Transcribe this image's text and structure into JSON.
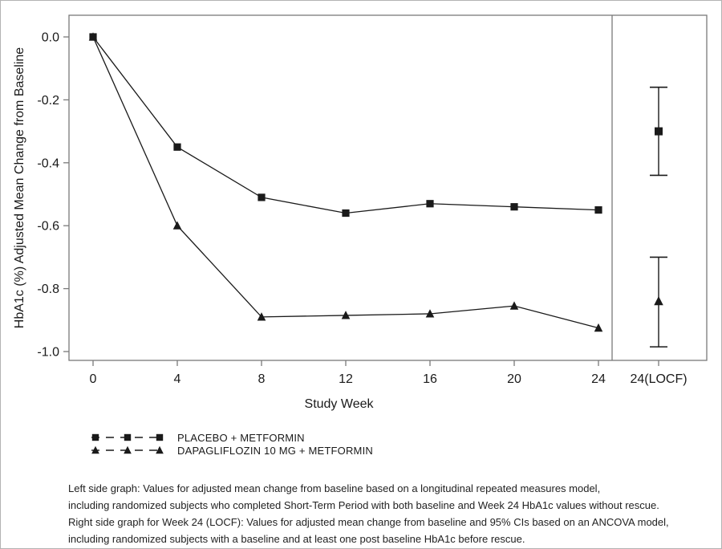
{
  "colors": {
    "ink": "#1a1a1a",
    "axis": "#7a7a7a",
    "frame_border": "#b3b3b3",
    "background": "#ffffff"
  },
  "chart_data": {
    "type": "line",
    "xlabel": "Study Week",
    "ylabel": "HbA1c (%) Adjusted Mean Change from Baseline",
    "x": [
      0,
      4,
      8,
      12,
      16,
      20,
      24
    ],
    "x_tick_labels": [
      "0",
      "4",
      "8",
      "12",
      "16",
      "20",
      "24"
    ],
    "locf_tick_label": "24(LOCF)",
    "ylim": [
      -1.0,
      0.0
    ],
    "yticks": [
      0.0,
      -0.2,
      -0.4,
      -0.6,
      -0.8,
      -1.0
    ],
    "ytick_labels": [
      "0.0",
      "-0.2",
      "-0.4",
      "-0.6",
      "-0.8",
      "-1.0"
    ],
    "grid": false,
    "legend_position": "bottom-left",
    "right_panel": "24 (LOCF) with 95% CI error bars, separated by vertical divider",
    "series": [
      {
        "name": "PLACEBO + METFORMIN",
        "marker": "square",
        "line_style": "dashed-in-legend",
        "values": [
          0.0,
          -0.35,
          -0.51,
          -0.56,
          -0.53,
          -0.54,
          -0.55
        ],
        "locf": {
          "value": -0.3,
          "ci_low": -0.44,
          "ci_high": -0.16
        }
      },
      {
        "name": "DAPAGLIFLOZIN 10 MG + METFORMIN",
        "marker": "triangle",
        "line_style": "dashed-in-legend",
        "values": [
          0.0,
          -0.6,
          -0.89,
          -0.885,
          -0.88,
          -0.855,
          -0.925
        ],
        "locf": {
          "value": -0.84,
          "ci_low": -0.985,
          "ci_high": -0.7
        }
      }
    ]
  },
  "footnotes": [
    "Left side graph: Values for adjusted mean change from baseline based on a longitudinal repeated measures model,",
    "including randomized subjects who completed Short-Term Period with both baseline and Week 24 HbA1c values without rescue.",
    "Right side graph for Week 24 (LOCF): Values for adjusted mean change from baseline and 95% CIs based on an ANCOVA model,",
    "including randomized subjects with a baseline and at least one post baseline HbA1c before rescue."
  ]
}
